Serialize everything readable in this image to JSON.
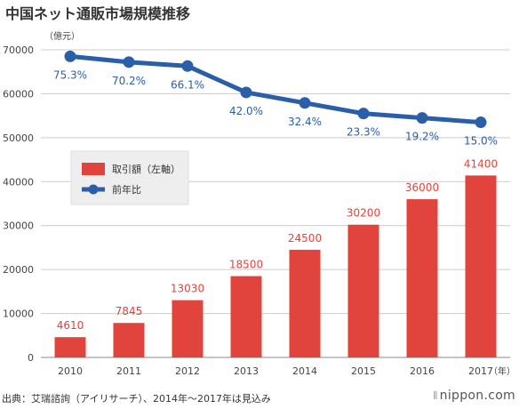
{
  "title": "中国ネット通販市場規模推移",
  "chart_data": {
    "type": "bar",
    "categories": [
      "2010",
      "2011",
      "2012",
      "2013",
      "2014",
      "2015",
      "2016",
      "2017"
    ],
    "series": [
      {
        "name": "取引額（左軸）",
        "type": "bar",
        "color": "#e0443c",
        "values": [
          4610,
          7845,
          13030,
          18500,
          24500,
          30200,
          36000,
          41400
        ],
        "labels": [
          "4610",
          "7845",
          "13030",
          "18500",
          "24500",
          "30200",
          "36000",
          "41400"
        ]
      },
      {
        "name": "前年比",
        "type": "line",
        "color": "#2a5ea8",
        "values": [
          68500,
          67200,
          66300,
          60300,
          57900,
          55500,
          54500,
          53500
        ],
        "labels": [
          "75.3%",
          "70.2%",
          "66.1%",
          "42.0%",
          "32.4%",
          "23.3%",
          "19.2%",
          "15.0%"
        ]
      }
    ],
    "ylim": [
      0,
      70000
    ],
    "yticks": [
      "0",
      "10000",
      "20000",
      "30000",
      "40000",
      "50000",
      "60000",
      "70000"
    ],
    "ylabel": "（億元）",
    "xunit": "（年）",
    "grid": true,
    "legend": "middle-left"
  },
  "footer": {
    "source": "出典：艾瑞諮詢（アイリサーチ）、2014年〜2017年は見込み",
    "logo": "nippon.com"
  }
}
